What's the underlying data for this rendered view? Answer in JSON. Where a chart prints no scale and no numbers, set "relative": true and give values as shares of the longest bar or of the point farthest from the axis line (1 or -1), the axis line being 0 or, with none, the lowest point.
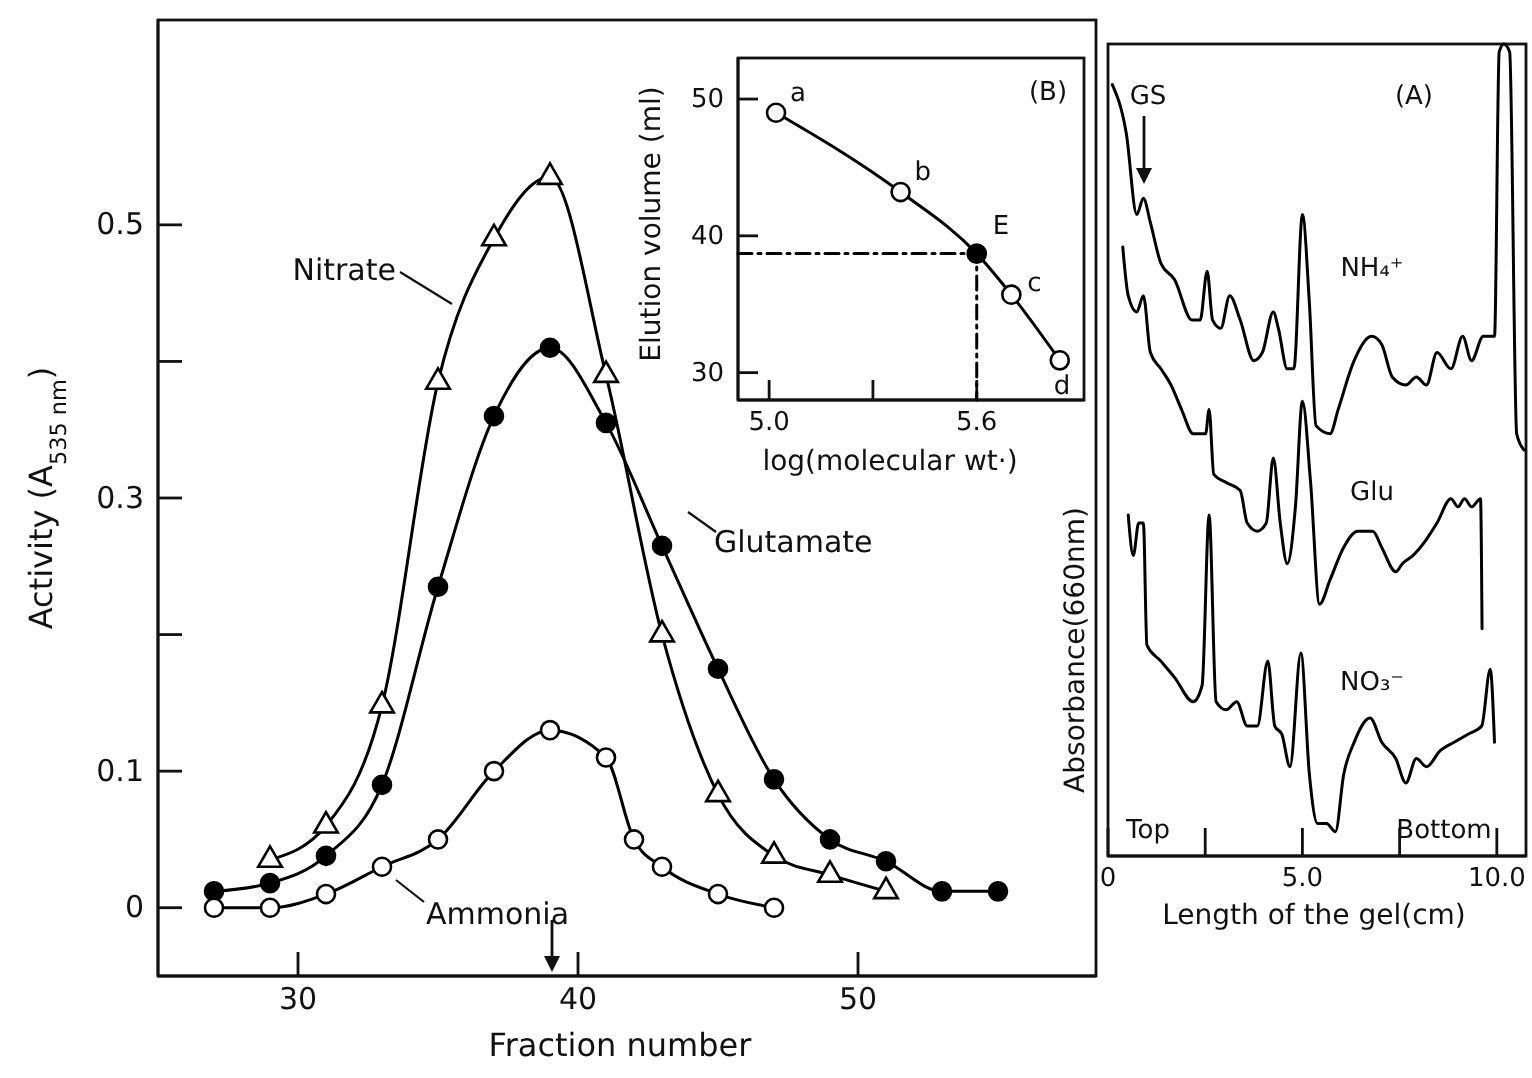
{
  "chart_data": [
    {
      "type": "line",
      "xlabel": "Fraction number",
      "ylabel": "Activity (A$_{535 nm}$)",
      "xlim": [
        25,
        58.5
      ],
      "ylim": [
        -0.05,
        0.65
      ],
      "xticks": [
        30,
        40,
        50
      ],
      "yticks": [
        0,
        {
          "value": 0.1,
          "label": "0.1"
        },
        {
          "value": 0.2,
          "label": null
        },
        {
          "value": 0.3,
          "label": "0.3"
        },
        {
          "value": 0.4,
          "label": null
        },
        {
          "value": 0.5,
          "label": "0.5"
        }
      ],
      "series": [
        {
          "name": "Nitrate",
          "color": "#000000",
          "colors": [
            "#ffffff",
            "#ffffff",
            "#ffffff",
            "#ffffff",
            "#ffffff",
            "#ffffff",
            "#ffffff",
            "#ffffff",
            "#ffffff",
            "#ffffff",
            "#ffffff",
            "#ffffff"
          ],
          "marker": "triangle",
          "x": [
            29,
            31,
            33,
            35,
            37,
            39,
            41,
            43,
            45,
            47,
            49,
            51
          ],
          "values": [
            0.035,
            0.06,
            0.148,
            0.385,
            0.49,
            0.535,
            0.39,
            0.2,
            0.083,
            0.038,
            0.024,
            0.012
          ]
        },
        {
          "name": "Glutamate",
          "color": "#000000",
          "marker": "circle",
          "x": [
            27,
            29,
            31,
            33,
            35,
            37,
            39,
            41,
            43,
            45,
            47,
            49,
            51,
            53,
            55
          ],
          "values": [
            0.012,
            0.018,
            0.038,
            0.09,
            0.235,
            0.36,
            0.41,
            0.355,
            0.265,
            0.175,
            0.094,
            0.05,
            0.034,
            0.012,
            0.012
          ]
        },
        {
          "name": "Ammonia",
          "color": "#000000",
          "colors": [
            "#ffffff",
            "#ffffff",
            "#ffffff",
            "#ffffff",
            "#ffffff",
            "#ffffff",
            "#ffffff",
            "#ffffff",
            "#ffffff",
            "#ffffff",
            "#ffffff",
            "#ffffff"
          ],
          "marker": "circle",
          "x": [
            27,
            29,
            31,
            33,
            35,
            37,
            39,
            41,
            42,
            43,
            45,
            47
          ],
          "values": [
            0,
            0,
            0.01,
            0.03,
            0.05,
            0.1,
            0.13,
            0.11,
            0.05,
            0.03,
            0.01,
            0
          ]
        }
      ]
    },
    {
      "type": "line",
      "xlabel": "log(molecular wt·)",
      "ylabel": "Elution volume (ml)",
      "xlim": [
        4.91,
        5.91
      ],
      "ylim": [
        28,
        53
      ],
      "xticks": [
        {
          "value": 5.0,
          "label": "5.0"
        },
        {
          "value": 5.3,
          "label": null
        },
        {
          "value": 5.6,
          "label": "5.6"
        }
      ],
      "yticks": [
        30,
        40,
        50
      ],
      "annotations": [
        "(B)",
        {
          "text": "a",
          "x": 5.02,
          "y": 49.0
        },
        {
          "text": "b",
          "x": 5.38,
          "y": 43.2
        },
        {
          "text": "E",
          "x": 5.6,
          "y": 38.7
        },
        {
          "text": "c",
          "x": 5.7,
          "y": 35.7
        },
        {
          "text": "d",
          "x": 5.84,
          "y": 30.9
        }
      ],
      "series": [
        {
          "color": "#000000",
          "colors": [
            "#ffffff",
            "#ffffff",
            "#000000",
            "#ffffff",
            "#ffffff"
          ],
          "marker": "circle",
          "x": [
            5.02,
            5.38,
            5.6,
            5.7,
            5.84
          ],
          "values": [
            49.0,
            43.2,
            38.7,
            35.7,
            30.9
          ]
        },
        {
          "color": "#000000",
          "marker": "none",
          "line_style": "dashed",
          "x": [
            4.91,
            5.6,
            5.6
          ],
          "values": [
            38.7,
            38.7,
            28
          ]
        }
      ]
    },
    {
      "type": "line",
      "relative": true,
      "xlabel": "Length of the gel(cm)",
      "ylabel": "Absorbance(660nm)",
      "xlim": [
        0,
        10.75
      ],
      "xticks": [
        0,
        {
          "value": 2.5,
          "label": null
        },
        {
          "value": 5.0,
          "label": "5.0"
        },
        {
          "value": 7.5,
          "label": null
        },
        {
          "value": 10.0,
          "label": "10.0"
        }
      ],
      "marker": "none",
      "annotations": [
        "GS",
        "(A)",
        "Top",
        "Bottom"
      ],
      "series": [
        {
          "name": "NH₄⁺",
          "color": "#000000",
          "x": [
            0.11,
            0.47,
            0.74,
            0.91,
            1.09,
            1.36,
            1.71,
            2.16,
            2.37,
            2.55,
            2.69,
            2.9,
            3.13,
            3.4,
            3.75,
            3.97,
            4.25,
            4.38,
            4.61,
            4.78,
            5.0,
            5.18,
            5.35,
            5.71,
            5.92,
            6.33,
            6.78,
            7.04,
            7.31,
            7.66,
            7.93,
            8.19,
            8.46,
            8.82,
            9.12,
            9.35,
            9.65,
            9.94,
            10.06,
            10.18,
            10.33,
            10.51,
            10.7
          ],
          "values": [
            0.95,
            0.89,
            0.79,
            0.81,
            0.78,
            0.73,
            0.71,
            0.66,
            0.66,
            0.72,
            0.66,
            0.65,
            0.69,
            0.66,
            0.61,
            0.62,
            0.67,
            0.65,
            0.6,
            0.6,
            0.79,
            0.68,
            0.53,
            0.52,
            0.55,
            0.61,
            0.64,
            0.63,
            0.59,
            0.58,
            0.59,
            0.58,
            0.62,
            0.6,
            0.64,
            0.61,
            0.64,
            0.64,
            0.99,
            1.0,
            0.99,
            0.52,
            0.5
          ]
        },
        {
          "name": "Glu",
          "color": "#000000",
          "x": [
            0.38,
            0.52,
            0.74,
            0.91,
            1.09,
            1.36,
            1.62,
            1.89,
            2.19,
            2.51,
            2.6,
            2.72,
            3.04,
            3.4,
            3.58,
            3.84,
            4.07,
            4.25,
            4.43,
            4.61,
            4.82,
            5.0,
            5.21,
            5.44,
            5.71,
            6.06,
            6.42,
            6.81,
            7.04,
            7.4,
            7.57,
            7.84,
            8.19,
            8.46,
            8.82,
            9.0,
            9.17,
            9.35,
            9.58,
            9.62
          ],
          "values": [
            0.75,
            0.69,
            0.67,
            0.69,
            0.62,
            0.6,
            0.58,
            0.55,
            0.52,
            0.52,
            0.55,
            0.47,
            0.46,
            0.45,
            0.41,
            0.4,
            0.41,
            0.49,
            0.41,
            0.36,
            0.43,
            0.56,
            0.46,
            0.31,
            0.34,
            0.38,
            0.4,
            0.4,
            0.38,
            0.35,
            0.36,
            0.37,
            0.39,
            0.41,
            0.44,
            0.43,
            0.44,
            0.43,
            0.44,
            0.28
          ]
        },
        {
          "name": "NO₃⁻",
          "color": "#000000",
          "x": [
            0.52,
            0.65,
            0.79,
            0.91,
            1.0,
            1.36,
            1.71,
            2.19,
            2.42,
            2.6,
            2.78,
            3.04,
            3.31,
            3.58,
            3.84,
            4.11,
            4.29,
            4.47,
            4.68,
            4.96,
            5.18,
            5.39,
            5.62,
            5.85,
            6.06,
            6.33,
            6.74,
            7.04,
            7.4,
            7.66,
            7.93,
            8.19,
            8.55,
            8.9,
            9.26,
            9.61,
            9.83,
            9.94
          ],
          "values": [
            0.42,
            0.37,
            0.41,
            0.41,
            0.26,
            0.24,
            0.22,
            0.19,
            0.21,
            0.42,
            0.19,
            0.18,
            0.19,
            0.16,
            0.16,
            0.24,
            0.16,
            0.15,
            0.11,
            0.25,
            0.1,
            0.04,
            0.04,
            0.03,
            0.1,
            0.14,
            0.17,
            0.14,
            0.12,
            0.09,
            0.12,
            0.11,
            0.13,
            0.14,
            0.15,
            0.16,
            0.23,
            0.14
          ]
        }
      ]
    }
  ]
}
